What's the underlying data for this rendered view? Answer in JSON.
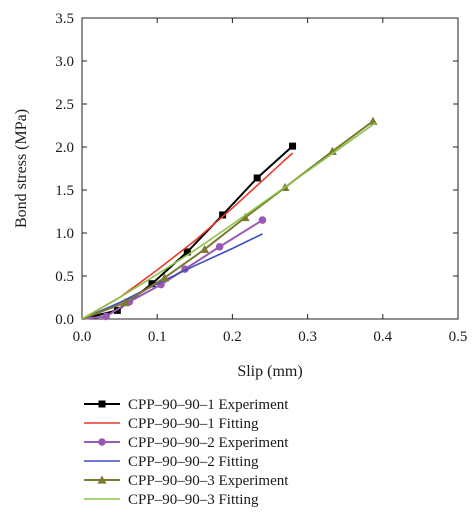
{
  "chart_data": {
    "type": "line",
    "xlabel": "Slip (mm)",
    "ylabel": "Bond stress (MPa)",
    "xlim": [
      0,
      0.5
    ],
    "ylim": [
      0,
      3.5
    ],
    "x_ticks": [
      "0.0",
      "0.1",
      "0.2",
      "0.3",
      "0.4",
      "0.5"
    ],
    "y_ticks": [
      "0.0",
      "0.5",
      "1.0",
      "1.5",
      "2.0",
      "2.5",
      "3.0",
      "3.5"
    ],
    "legend_position": "bottom",
    "grid": false,
    "series": [
      {
        "name": "CPP–90–90–1 Experiment",
        "style": "experiment",
        "marker": "square",
        "color": "#000000",
        "x": [
          0.0,
          0.047,
          0.093,
          0.14,
          0.187,
          0.233,
          0.28
        ],
        "y": [
          0.0,
          0.1,
          0.41,
          0.78,
          1.21,
          1.64,
          2.01
        ]
      },
      {
        "name": "CPP–90–90–1 Fitting",
        "style": "fitting",
        "color": "#e8392e",
        "x": [
          0.0,
          0.05,
          0.1,
          0.15,
          0.2,
          0.25,
          0.28
        ],
        "y": [
          0.0,
          0.25,
          0.57,
          0.91,
          1.29,
          1.69,
          1.93
        ]
      },
      {
        "name": "CPP–90–90–2 Experiment",
        "style": "experiment",
        "marker": "circle",
        "color": "#9b59b6",
        "x": [
          0.0,
          0.032,
          0.063,
          0.105,
          0.137,
          0.183,
          0.24
        ],
        "y": [
          0.0,
          0.03,
          0.2,
          0.4,
          0.58,
          0.84,
          1.15
        ]
      },
      {
        "name": "CPP–90–90–2 Fitting",
        "style": "fitting",
        "color": "#3b4cc0",
        "x": [
          0.0,
          0.05,
          0.1,
          0.15,
          0.2,
          0.24
        ],
        "y": [
          0.0,
          0.19,
          0.41,
          0.62,
          0.82,
          0.99
        ]
      },
      {
        "name": "CPP–90–90–3 Experiment",
        "style": "experiment",
        "marker": "triangle",
        "color": "#7b7a2e",
        "x": [
          0.0,
          0.057,
          0.11,
          0.163,
          0.217,
          0.27,
          0.333,
          0.387
        ],
        "y": [
          0.0,
          0.19,
          0.48,
          0.81,
          1.18,
          1.53,
          1.95,
          2.3
        ]
      },
      {
        "name": "CPP–90–90–3 Fitting",
        "style": "fitting",
        "color": "#8bc34a",
        "x": [
          0.0,
          0.05,
          0.1,
          0.15,
          0.2,
          0.25,
          0.3,
          0.35,
          0.39
        ],
        "y": [
          0.0,
          0.25,
          0.52,
          0.8,
          1.1,
          1.41,
          1.72,
          2.03,
          2.28
        ]
      }
    ]
  }
}
